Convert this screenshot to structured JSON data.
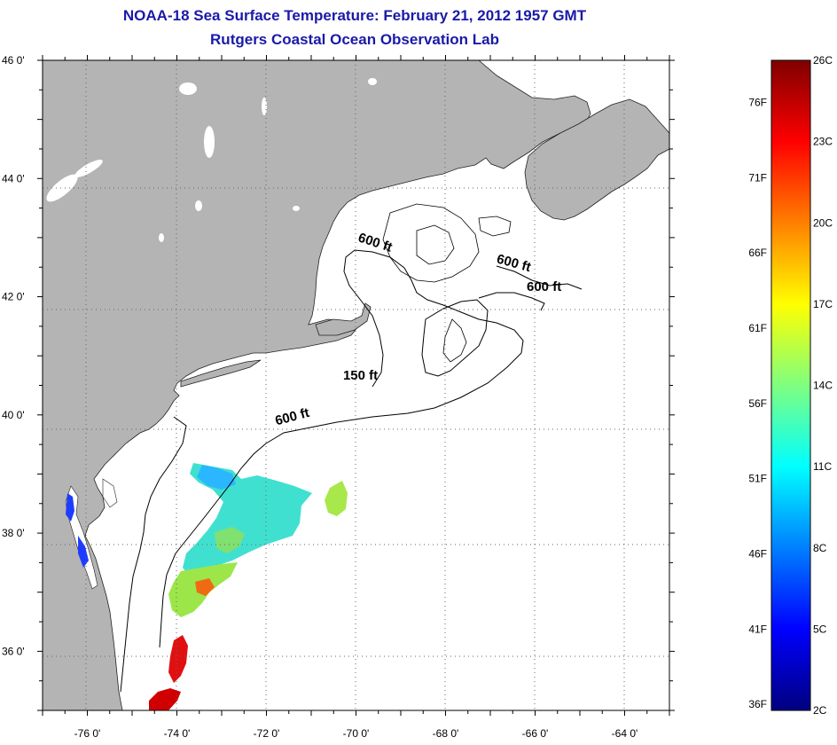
{
  "title": "NOAA-18 Sea Surface Temperature:  February 21, 2012 1957 GMT",
  "subtitle": "Rutgers Coastal Ocean Observation Lab",
  "map": {
    "lon_range": [
      -77,
      -63
    ],
    "lat_range": [
      35,
      46
    ],
    "lat_labels": [
      "46 0'",
      "44 0'",
      "42 0'",
      "40 0'",
      "38 0'",
      "36 0'"
    ],
    "lat_values": [
      46,
      44,
      42,
      40,
      38,
      36
    ],
    "lon_labels": [
      "-76 0'",
      "-74 0'",
      "-72 0'",
      "-70 0'",
      "-68 0'",
      "-66 0'",
      "-64 0'"
    ],
    "lon_values": [
      -76,
      -74,
      -72,
      -70,
      -68,
      -66,
      -64
    ],
    "land_color": "#b4b4b4",
    "ocean_color": "#ffffff",
    "grid": "dotted"
  },
  "contour_labels": [
    {
      "text": "600 ft",
      "lon": -69.6,
      "lat": 42.85
    },
    {
      "text": "600 ft",
      "lon": -66.5,
      "lat": 42.5
    },
    {
      "text": "600 ft",
      "lon": -65.8,
      "lat": 42.1
    },
    {
      "text": "150 ft",
      "lon": -69.9,
      "lat": 40.6
    },
    {
      "text": "600 ft",
      "lon": -71.4,
      "lat": 39.9
    }
  ],
  "colorbar": {
    "celsius_labels": [
      "26C",
      "23C",
      "20C",
      "17C",
      "14C",
      "11C",
      "8C",
      "5C",
      "2C"
    ],
    "celsius_values": [
      26,
      23,
      20,
      17,
      14,
      11,
      8,
      5,
      2
    ],
    "fahrenheit_labels": [
      "76F",
      "71F",
      "66F",
      "61F",
      "56F",
      "51F",
      "46F",
      "41F",
      "36F"
    ],
    "fahrenheit_values": [
      76,
      71,
      66,
      61,
      56,
      51,
      46,
      41,
      36
    ],
    "range_c": [
      2,
      26
    ]
  }
}
